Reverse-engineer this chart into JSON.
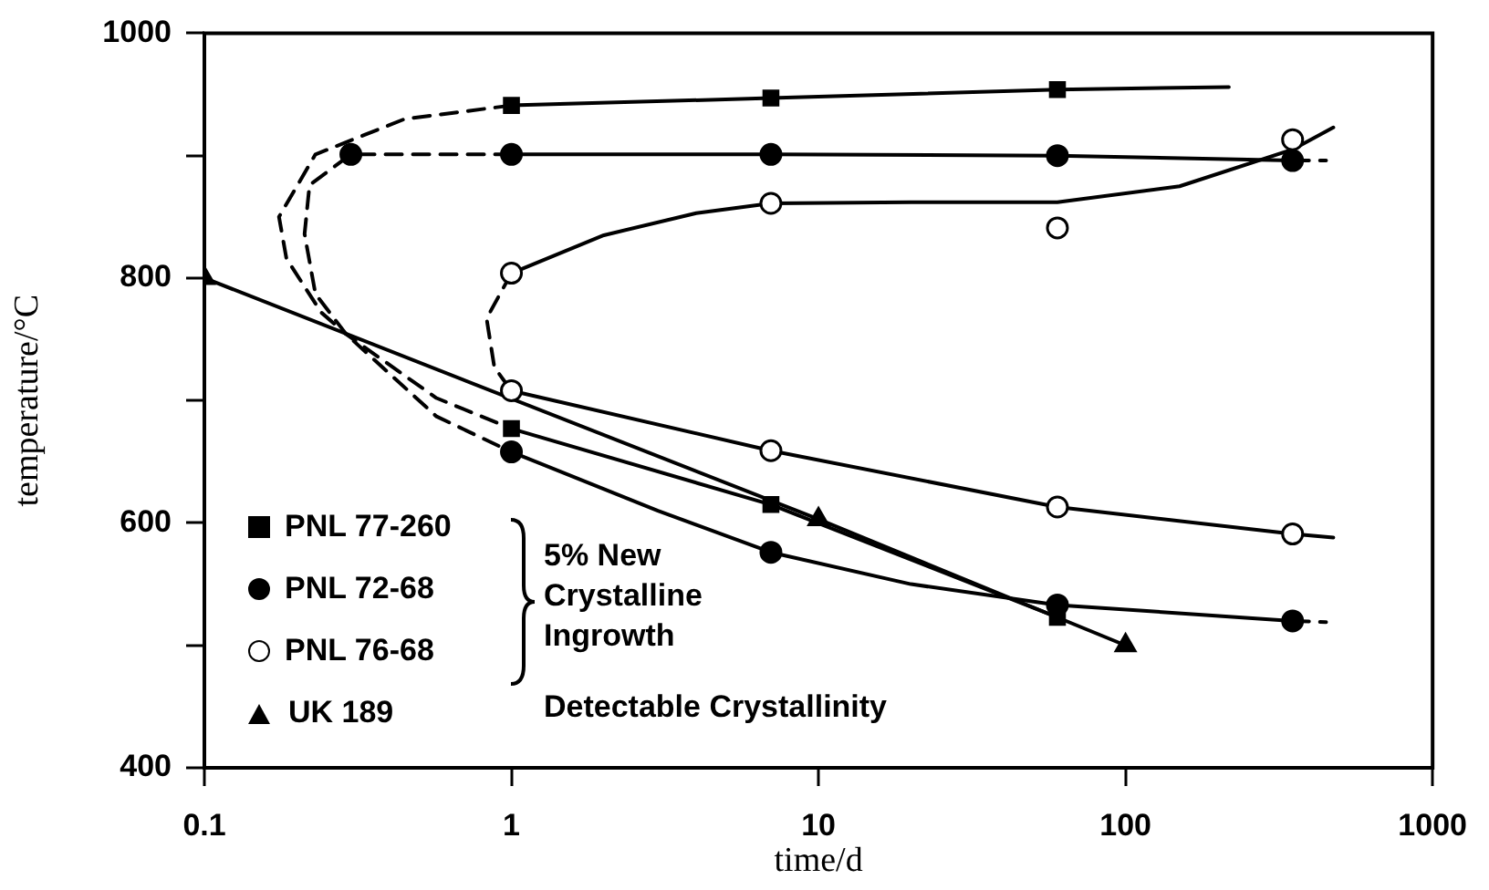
{
  "chart_data": {
    "type": "line",
    "xlabel": "time/d",
    "ylabel": "temperature/°C",
    "log": "x",
    "xlim": [
      0.1,
      1000
    ],
    "xticks": [
      0.1,
      1,
      10,
      100,
      1000
    ],
    "ylim": [
      400,
      1000
    ],
    "yticks": [
      400,
      {
        "value": 500,
        "label": null
      },
      600,
      {
        "value": 700,
        "label": null
      },
      800,
      {
        "value": 900,
        "label": null
      },
      1000
    ],
    "legend": "bottom left",
    "grid": false,
    "annotations": [
      "5% New Crystalline Ingrowth",
      "Detectable Crystallinity"
    ],
    "series": [
      {
        "name": "PNL 77-260",
        "type": "scatter",
        "marker": "square",
        "color": "#000000",
        "x": [
          1,
          7,
          60,
          1,
          7,
          60
        ],
        "values": [
          941,
          947,
          954,
          677,
          615,
          523
        ]
      },
      {
        "name": "PNL 72-68",
        "type": "scatter",
        "marker": "circle",
        "color": "#000000",
        "x": [
          0.3,
          1,
          7,
          60,
          350,
          1,
          7,
          60,
          350
        ],
        "values": [
          901,
          901,
          901,
          900,
          896,
          658,
          576,
          533,
          520
        ]
      },
      {
        "name": "PNL 76-68",
        "type": "scatter",
        "marker": "circle",
        "color": "#ffffff",
        "x": [
          1,
          7,
          60,
          350,
          1,
          7,
          60,
          350
        ],
        "values": [
          804,
          861,
          841,
          913,
          708,
          659,
          613,
          591
        ]
      },
      {
        "name": "UK 189",
        "type": "line",
        "marker": "triangle",
        "line_style": "solid",
        "color": "#000000",
        "x": [
          0.1,
          1,
          10,
          100
        ],
        "values": [
          800,
          null,
          603,
          500
        ]
      },
      {
        "type": "line",
        "marker": "none",
        "line_style": "solid",
        "color": "#000000",
        "x": [
          1,
          7,
          60,
          217
        ],
        "values": [
          941,
          947,
          954,
          956
        ]
      },
      {
        "type": "line",
        "marker": "none",
        "line_style": "dashed",
        "color": "#000000",
        "x": [
          1,
          0.45,
          0.23,
          0.175,
          0.185,
          0.24,
          0.29,
          0.57,
          1
        ],
        "values": [
          941,
          930,
          901,
          850,
          816,
          772,
          754,
          702,
          677
        ]
      },
      {
        "type": "line",
        "marker": "none",
        "line_style": "solid",
        "color": "#000000",
        "x": [
          1,
          7,
          60
        ],
        "values": [
          677,
          615,
          523
        ]
      },
      {
        "type": "line",
        "marker": "none",
        "line_style": "dashed",
        "color": "#000000",
        "x": [
          1,
          0.3,
          0.22,
          0.212,
          0.23,
          0.29,
          0.57,
          1
        ],
        "values": [
          901,
          901,
          876,
          836,
          787,
          754,
          687,
          658
        ]
      },
      {
        "type": "line",
        "marker": "none",
        "line_style": "solid",
        "color": "#000000",
        "x": [
          1,
          7,
          60,
          350
        ],
        "values": [
          901,
          901,
          900,
          896
        ]
      },
      {
        "type": "line",
        "marker": "none",
        "line_style": "dashed",
        "color": "#000000",
        "x": [
          350,
          450
        ],
        "values": [
          896,
          896
        ]
      },
      {
        "type": "line",
        "marker": "none",
        "line_style": "solid",
        "color": "#000000",
        "x": [
          1,
          3,
          7,
          20,
          60,
          350
        ],
        "values": [
          658,
          610,
          576,
          550,
          533,
          520
        ]
      },
      {
        "type": "line",
        "marker": "none",
        "line_style": "dashed",
        "color": "#000000",
        "x": [
          350,
          450
        ],
        "values": [
          520,
          519
        ]
      },
      {
        "type": "line",
        "marker": "none",
        "line_style": "dashed",
        "color": "#000000",
        "x": [
          1,
          0.83,
          0.88,
          1
        ],
        "values": [
          804,
          767,
          727,
          708
        ]
      },
      {
        "type": "line",
        "marker": "none",
        "line_style": "solid",
        "color": "#000000",
        "x": [
          1,
          2,
          4,
          7,
          20,
          60,
          150,
          350,
          475
        ],
        "values": [
          804,
          835,
          853,
          861,
          862,
          862,
          875,
          905,
          923
        ]
      },
      {
        "type": "line",
        "marker": "none",
        "line_style": "solid",
        "color": "#000000",
        "x": [
          1,
          7,
          60,
          350,
          475
        ],
        "values": [
          708,
          659,
          613,
          591,
          588
        ]
      }
    ]
  }
}
